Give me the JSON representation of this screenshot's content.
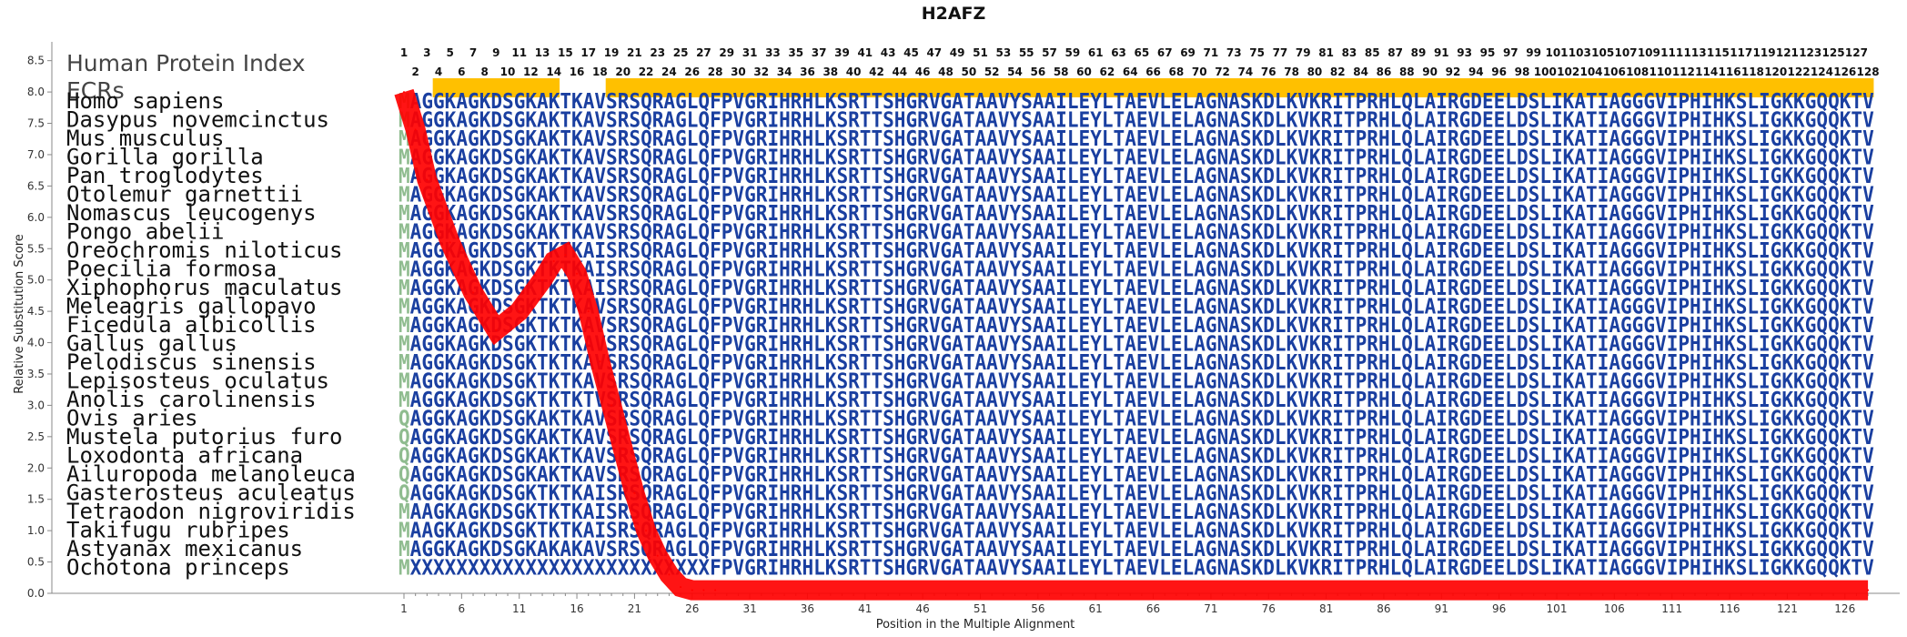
{
  "chart_data": {
    "type": "line",
    "title": "H2AFZ",
    "xlabel": "Position in the Multiple Alignment",
    "ylabel": "Relative Substitution Score",
    "xlim": [
      1,
      128
    ],
    "ylim": [
      0,
      8.8
    ],
    "y_ticks": [
      "0.0",
      "0.5",
      "1.0",
      "1.5",
      "2.0",
      "2.5",
      "3.0",
      "3.5",
      "4.0",
      "4.5",
      "5.0",
      "5.5",
      "6.0",
      "6.5",
      "7.0",
      "7.5",
      "8.0",
      "8.5"
    ],
    "x_ticks": [
      "1",
      "6",
      "11",
      "16",
      "21",
      "26",
      "31",
      "36",
      "41",
      "46",
      "51",
      "56",
      "61",
      "66",
      "71",
      "76",
      "81",
      "86",
      "91",
      "96",
      "101",
      "106",
      "111",
      "116",
      "121",
      "126"
    ],
    "protein_index_label": "Human Protein Index",
    "ecr_label": "ECRs",
    "protein_index_length": 128,
    "ecr_regions": [
      [
        4,
        14
      ],
      [
        19,
        128
      ]
    ],
    "series": [
      {
        "color": "#ff0000",
        "x": [
          1,
          2,
          3,
          5,
          7,
          9,
          11,
          13,
          14,
          15,
          16,
          17,
          18,
          19,
          20,
          21,
          22,
          23,
          24,
          25,
          26,
          27,
          28,
          128
        ],
        "y": [
          8.0,
          7.4,
          6.6,
          5.6,
          4.8,
          4.2,
          4.5,
          5.0,
          5.3,
          5.4,
          5.1,
          4.5,
          3.7,
          3.0,
          2.3,
          1.6,
          1.0,
          0.6,
          0.3,
          0.1,
          0.05,
          0.05,
          0.05,
          0.05
        ]
      }
    ],
    "alignment": {
      "highlight_color": "#8fbc8f",
      "sequence_color": "#1a3fa0",
      "highlight_position": 1,
      "rows": [
        {
          "species": "Homo sapiens",
          "seq": "MAGGKAGKDSGKAKTKAVSRSQRAGLQFPVGRIHRHLKSRTTSHGRVGATAAVYSAAILEYLTAEVLELAGNASKDLKVKRITPRHLQLAIRGDEELDSLIKATIAGGGVIPHIHKSLIGKKGQQKTV"
        },
        {
          "species": "Dasypus novemcinctus",
          "seq": "MAGGKAGKDSGKAKTKAVSRSQRAGLQFPVGRIHRHLKSRTTSHGRVGATAAVYSAAILEYLTAEVLELAGNASKDLKVKRITPRHLQLAIRGDEELDSLIKATIAGGGVIPHIHKSLIGKKGQQKTV"
        },
        {
          "species": "Mus musculus",
          "seq": "MAGGKAGKDSGKAKTKAVSRSQRAGLQFPVGRIHRHLKSRTTSHGRVGATAAVYSAAILEYLTAEVLELAGNASKDLKVKRITPRHLQLAIRGDEELDSLIKATIAGGGVIPHIHKSLIGKKGQQKTV"
        },
        {
          "species": "Gorilla gorilla",
          "seq": "MAGGKAGKDSGKAKTKAVSRSQRAGLQFPVGRIHRHLKSRTTSHGRVGATAAVYSAAILEYLTAEVLELAGNASKDLKVKRITPRHLQLAIRGDEELDSLIKATIAGGGVIPHIHKSLIGKKGQQKTV"
        },
        {
          "species": "Pan troglodytes",
          "seq": "MAGGKAGKDSGKAKTKAVSRSQRAGLQFPVGRIHRHLKSRTTSHGRVGATAAVYSAAILEYLTAEVLELAGNASKDLKVKRITPRHLQLAIRGDEELDSLIKATIAGGGVIPHIHKSLIGKKGQQKTV"
        },
        {
          "species": "Otolemur garnettii",
          "seq": "MAGGKAGKDSGKAKTKAVSRSQRAGLQFPVGRIHRHLKSRTTSHGRVGATAAVYSAAILEYLTAEVLELAGNASKDLKVKRITPRHLQLAIRGDEELDSLIKATIAGGGVIPHIHKSLIGKKGQQKTV"
        },
        {
          "species": "Nomascus leucogenys",
          "seq": "MAGGKAGKDSGKAKTKAVSRSQRAGLQFPVGRIHRHLKSRTTSHGRVGATAAVYSAAILEYLTAEVLELAGNASKDLKVKRITPRHLQLAIRGDEELDSLIKATIAGGGVIPHIHKSLIGKKGQQKTV"
        },
        {
          "species": "Pongo abelii",
          "seq": "MAGGKAGKDSGKAKTKAVSRSQRAGLQFPVGRIHRHLKSRTTSHGRVGATAAVYSAAILEYLTAEVLELAGNASKDLKVKRITPRHLQLAIRGDEELDSLIKATIAGGGVIPHIHKSLIGKKGQQKTV"
        },
        {
          "species": "Oreochromis niloticus",
          "seq": "MAGGKAGKDSGKTKTKAISRSQRAGLQFPVGRIHRHLKSRTTSHGRVGATAAVYSAAILEYLTAEVLELAGNASKDLKVKRITPRHLQLAIRGDEELDSLIKATIAGGGVIPHIHKSLIGKKGQQKTV"
        },
        {
          "species": "Poecilia formosa",
          "seq": "MAGGKAGKDSGKTKTKAISRSQRAGLQFPVGRIHRHLKSRTTSHGRVGATAAVYSAAILEYLTAEVLELAGNASKDLKVKRITPRHLQLAIRGDEELDSLIKATIAGGGVIPHIHKSLIGKKGQQKTV"
        },
        {
          "species": "Xiphophorus maculatus",
          "seq": "MAGGKAGKDSGKTKTKAISRSQRAGLQFPVGRIHRHLKSRTTSHGRVGATAAVYSAAILEYLTAEVLELAGNASKDLKVKRITPRHLQLAIRGDEELDSLIKATIAGGGVIPHIHKSLIGKKGQQKTV"
        },
        {
          "species": "Meleagris gallopavo",
          "seq": "MAGGKAGKDSGKTKTKAVSRSQRAGLQFPVGRIHRHLKSRTTSHGRVGATAAVYSAAILEYLTAEVLELAGNASKDLKVKRITPRHLQLAIRGDEELDSLIKATIAGGGVIPHIHKSLIGKKGQQKTV"
        },
        {
          "species": "Ficedula albicollis",
          "seq": "MAGGKAGKDSGKTKTKAVSRSQRAGLQFPVGRIHRHLKSRTTSHGRVGATAAVYSAAILEYLTAEVLELAGNASKDLKVKRITPRHLQLAIRGDEELDSLIKATIAGGGVIPHIHKSLIGKKGQQKTV"
        },
        {
          "species": "Gallus gallus",
          "seq": "MAGGKAGKDSGKTKTKAVSRSQRAGLQFPVGRIHRHLKSRTTSHGRVGATAAVYSAAILEYLTAEVLELAGNASKDLKVKRITPRHLQLAIRGDEELDSLIKATIAGGGVIPHIHKSLIGKKGQQKTV"
        },
        {
          "species": "Pelodiscus sinensis",
          "seq": "MAGGKAGKDSGKTKTKAVSRSQRAGLQFPVGRIHRHLKSRTTSHGRVGATAAVYSAAILEYLTAEVLELAGNASKDLKVKRITPRHLQLAIRGDEELDSLIKATIAGGGVIPHIHKSLIGKKGQQKTV"
        },
        {
          "species": "Lepisosteus oculatus",
          "seq": "MAGGKAGKDSGKTKTKAVSRSQRAGLQFPVGRIHRHLKSRTTSHGRVGATAAVYSAAILEYLTAEVLELAGNASKDLKVKRITPRHLQLAIRGDEELDSLIKATIAGGGVIPHIHKSLIGKKGQQKTV"
        },
        {
          "species": "Anolis carolinensis",
          "seq": "MAGGKAGKDSGKTKTKTVSRSQRAGLQFPVGRIHRHLKSRTTSHGRVGATAAVYSAAILEYLTAEVLELAGNASKDLKVKRITPRHLQLAIRGDEELDSLIKATIAGGGVIPHIHKSLIGKKGQQKTV"
        },
        {
          "species": "Ovis aries",
          "seq": "QAGGKAGKDSGKAKTKAVSRSQRAGLQFPVGRIHRHLKSRTTSHGRVGATAAVYSAAILEYLTAEVLELAGNASKDLKVKRITPRHLQLAIRGDEELDSLIKATIAGGGVIPHIHKSLIGKKGQQKTV"
        },
        {
          "species": "Mustela putorius furo",
          "seq": "QAGGKAGKDSGKAKTKAVSRSQRAGLQFPVGRIHRHLKSRTTSHGRVGATAAVYSAAILEYLTAEVLELAGNASKDLKVKRITPRHLQLAIRGDEELDSLIKATIAGGGVIPHIHKSLIGKKGQQKTV"
        },
        {
          "species": "Loxodonta africana",
          "seq": "QAGGKAGKDSGKAKTKAVSRSQRAGLQFPVGRIHRHLKSRTTSHGRVGATAAVYSAAILEYLTAEVLELAGNASKDLKVKRITPRHLQLAIRGDEELDSLIKATIAGGGVIPHIHKSLIGKKGQQKTV"
        },
        {
          "species": "Ailuropoda melanoleuca",
          "seq": "QAGGKAGKDSGKAKTKAVSRSQRAGLQFPVGRIHRHLKSRTTSHGRVGATAAVYSAAILEYLTAEVLELAGNASKDLKVKRITPRHLQLAIRGDEELDSLIKATIAGGGVIPHIHKSLIGKKGQQKTV"
        },
        {
          "species": "Gasterosteus aculeatus",
          "seq": "QAGGKAGKDSGKTKTKAISRSQRAGLQFPVGRIHRHLKSRTTSHGRVGATAAVYSAAILEYLTAEVLELAGNASKDLKVKRITPRHLQLAIRGDEELDSLIKATIAGGGVIPHIHKSLIGKKGQQKTV"
        },
        {
          "species": "Tetraodon nigroviridis",
          "seq": "MAAGKAGKDSGKTKTKAISRSQRAGLQFPVGRIHRHLKSRTTSHGRVGATAAVYSAAILEYLTAEVLELAGNASKDLKVKRITPRHLQLAIRGDEELDSLIKATIAGGGVIPHIHKSLIGKKGQQKTV"
        },
        {
          "species": "Takifugu rubripes",
          "seq": "MAAGKAGKDSGKTKTKAISRSQRAGLQFPVGRIHRHLKSRTTSHGRVGATAAVYSAAILEYLTAEVLELAGNASKDLKVKRITPRHLQLAIRGDEELDSLIKATIAGGGVIPHIHKSLIGKKGQQKTV"
        },
        {
          "species": "Astyanax mexicanus",
          "seq": "MAGGKAGKDSGKAKAKAVSRSQRAGLQFPVGRIHRHLKSRTTSHGRVGATAAVYSAAILEYLTAEVLELAGNASKDLKVKRITPRHLQLAIRGDEELDSLIKATIAGGGVIPHIHKSLIGKKGQQKTV"
        },
        {
          "species": "Ochotona princeps",
          "seq": "MXXXXXXXXXXXXXXXXXXXXXXXXXXFPVGRIHRHLKSRTTSHGRVGATAAVYSAAILEYLTAEVLELAGNASKDLKVKRITPRHLQLAIRGDEELDSLIKATIAGGGVIPHIHKSLIGKKGQQKTV"
        }
      ]
    },
    "colors": {
      "ecr": "#ffc000",
      "line": "#ff0000",
      "axis": "#888888"
    }
  }
}
